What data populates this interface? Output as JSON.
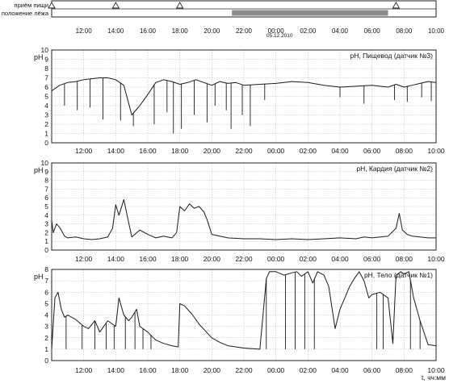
{
  "events": {
    "meal_label": "приём пищи",
    "lying_label": "положение лёжа",
    "meal_times": [
      10.0,
      14.0,
      18.0,
      7.5
    ],
    "lying_period": [
      "21:15",
      "07:00"
    ],
    "x_ticks": [
      "12:00",
      "14:00",
      "16:00",
      "18:00",
      "20:00",
      "22:00",
      "00:00",
      "02:00",
      "04:00",
      "06:00",
      "08:00",
      "10:00"
    ]
  },
  "date_stamp": "05.12.2010",
  "time_axis_label": "t, чч:мм",
  "colors": {
    "trace": "#1a1a1a",
    "grid": "#b5b5b5",
    "lying_bar": "#8c8c8c"
  },
  "chart_data": [
    {
      "type": "line",
      "title": "рН, Пищевод (датчик №3)",
      "ylabel": "pH",
      "ylim": [
        0,
        10
      ],
      "yticks": [
        0,
        1,
        2,
        3,
        4,
        5,
        6,
        7,
        8,
        9,
        10
      ],
      "x_tick_labels": [
        "12:00",
        "14:00",
        "16:00",
        "18:00",
        "20:00",
        "22:00",
        "00:00",
        "02:00",
        "04:00",
        "06:00",
        "08:00",
        "10:00"
      ],
      "x_range_hours": [
        10.0,
        34.0
      ],
      "grid": true,
      "series": [
        {
          "x": [
            10.0,
            10.5,
            11.0,
            11.5,
            12.0,
            12.5,
            13.0,
            13.5,
            14.0,
            14.5,
            15.0,
            15.5,
            16.0,
            16.5,
            17.0,
            17.5,
            18.0,
            18.5,
            19.0,
            19.5,
            20.0,
            20.5,
            21.0,
            21.5,
            22.0,
            23.0,
            24.0,
            25.0,
            26.0,
            27.0,
            28.0,
            29.0,
            30.0,
            31.0,
            31.5,
            32.0,
            32.5,
            33.0,
            33.5,
            34.0
          ],
          "y": [
            5.6,
            6.2,
            6.5,
            6.6,
            6.8,
            6.9,
            7.0,
            7.0,
            6.8,
            6.2,
            3.0,
            4.0,
            5.2,
            6.5,
            6.8,
            6.6,
            6.3,
            6.5,
            6.8,
            6.5,
            6.2,
            6.6,
            6.4,
            6.5,
            6.2,
            6.3,
            6.4,
            6.6,
            6.5,
            6.2,
            6.0,
            6.1,
            6.2,
            6.0,
            6.3,
            6.0,
            6.2,
            6.4,
            6.6,
            6.5
          ],
          "dips": [
            [
              10.8,
              4.0
            ],
            [
              11.6,
              3.5
            ],
            [
              12.4,
              3.8
            ],
            [
              13.2,
              2.5
            ],
            [
              14.3,
              2.4
            ],
            [
              15.1,
              1.8
            ],
            [
              16.4,
              2.0
            ],
            [
              17.2,
              3.3
            ],
            [
              17.6,
              1.0
            ],
            [
              18.1,
              1.5
            ],
            [
              18.9,
              3.0
            ],
            [
              19.7,
              2.2
            ],
            [
              20.2,
              4.0
            ],
            [
              20.9,
              3.5
            ],
            [
              21.2,
              1.5
            ],
            [
              21.9,
              3.0
            ],
            [
              22.4,
              1.8
            ],
            [
              23.3,
              4.6
            ],
            [
              28.0,
              4.9
            ],
            [
              29.5,
              4.2
            ],
            [
              31.4,
              4.6
            ],
            [
              32.2,
              4.4
            ],
            [
              33.1,
              4.9
            ],
            [
              33.7,
              4.5
            ]
          ]
        }
      ]
    },
    {
      "type": "line",
      "title": "рН, Кардия (датчик №2)",
      "ylabel": "pH",
      "ylim": [
        0,
        10
      ],
      "yticks": [
        0,
        1,
        2,
        3,
        4,
        5,
        6,
        7,
        8,
        9,
        10
      ],
      "x_tick_labels": [
        "12:00",
        "14:00",
        "16:00",
        "18:00",
        "20:00",
        "22:00",
        "00:00",
        "02:00",
        "04:00",
        "06:00",
        "08:00",
        "10:00"
      ],
      "x_range_hours": [
        10.0,
        34.0
      ],
      "grid": true,
      "series": [
        {
          "x": [
            10.0,
            10.1,
            10.3,
            10.5,
            10.8,
            11.0,
            11.5,
            12.0,
            12.5,
            13.0,
            13.5,
            13.8,
            14.0,
            14.2,
            14.5,
            14.8,
            15.0,
            15.5,
            16.0,
            16.5,
            17.0,
            17.5,
            17.8,
            18.0,
            18.3,
            18.6,
            18.9,
            19.2,
            19.5,
            19.7,
            20.0,
            20.5,
            21.0,
            22.0,
            23.0,
            24.0,
            25.0,
            26.0,
            27.0,
            28.0,
            29.0,
            29.5,
            30.0,
            31.0,
            31.5,
            31.7,
            31.9,
            32.2,
            32.5,
            33.0,
            33.5,
            34.0
          ],
          "y": [
            3.4,
            2.0,
            3.0,
            2.6,
            1.6,
            1.4,
            1.5,
            1.3,
            1.2,
            1.3,
            1.5,
            2.5,
            5.2,
            4.0,
            5.8,
            3.2,
            1.5,
            2.3,
            1.8,
            1.4,
            1.6,
            1.4,
            2.0,
            5.0,
            4.5,
            5.3,
            4.8,
            5.0,
            4.4,
            3.5,
            1.8,
            1.6,
            1.4,
            1.3,
            1.3,
            1.2,
            1.3,
            1.2,
            1.3,
            1.4,
            1.3,
            1.5,
            1.4,
            1.6,
            2.5,
            4.2,
            2.3,
            1.8,
            1.6,
            1.5,
            1.4,
            1.4
          ],
          "dips": []
        }
      ]
    },
    {
      "type": "line",
      "title": "рН, Тело (датчик №1)",
      "ylabel": "pH",
      "ylim": [
        0,
        8
      ],
      "yticks": [
        0,
        1,
        2,
        3,
        4,
        5,
        6,
        7,
        8
      ],
      "x_tick_labels": [
        "12:00",
        "14:00",
        "16:00",
        "18:00",
        "20:00",
        "22:00",
        "00:00",
        "02:00",
        "04:00",
        "06:00",
        "08:00",
        "10:00"
      ],
      "x_range_hours": [
        10.0,
        34.0
      ],
      "grid": true,
      "series": [
        {
          "x": [
            10.0,
            10.2,
            10.4,
            10.6,
            10.8,
            11.0,
            11.5,
            12.0,
            12.3,
            12.7,
            13.0,
            13.5,
            14.0,
            14.2,
            14.5,
            14.8,
            15.0,
            15.3,
            15.5,
            16.0,
            16.5,
            17.0,
            17.5,
            17.9,
            18.0,
            18.3,
            18.8,
            19.2,
            19.6,
            20.0,
            20.5,
            21.0,
            22.0,
            23.0,
            23.4,
            23.6,
            24.0,
            24.5,
            25.0,
            25.3,
            25.6,
            26.0,
            26.3,
            26.6,
            27.0,
            27.3,
            27.7,
            28.0,
            28.3,
            28.6,
            28.9,
            29.2,
            29.5,
            29.8,
            30.0,
            30.5,
            31.0,
            31.3,
            31.5,
            31.8,
            32.0,
            32.3,
            32.6,
            33.0,
            33.5,
            34.0
          ],
          "y": [
            1.0,
            5.5,
            6.0,
            4.5,
            3.8,
            4.0,
            3.6,
            3.0,
            2.8,
            3.5,
            2.5,
            3.5,
            3.0,
            5.5,
            4.0,
            3.5,
            3.8,
            4.5,
            3.0,
            2.5,
            1.8,
            1.5,
            1.3,
            1.2,
            5.0,
            4.8,
            4.0,
            3.2,
            2.6,
            2.0,
            1.6,
            1.3,
            1.1,
            1.0,
            7.2,
            7.8,
            7.8,
            7.5,
            7.7,
            7.8,
            7.4,
            7.8,
            6.8,
            7.8,
            7.5,
            6.5,
            2.8,
            4.5,
            5.5,
            6.5,
            7.2,
            7.8,
            7.0,
            5.5,
            5.8,
            6.0,
            5.5,
            1.5,
            7.5,
            7.8,
            7.6,
            7.8,
            5.5,
            3.5,
            1.4,
            1.3
          ],
          "dips": [
            [
              10.9,
              1.0
            ],
            [
              11.9,
              1.0
            ],
            [
              12.7,
              1.0
            ],
            [
              13.4,
              1.0
            ],
            [
              13.9,
              1.0
            ],
            [
              14.6,
              1.0
            ],
            [
              15.2,
              1.0
            ],
            [
              15.7,
              1.0
            ],
            [
              16.2,
              1.0
            ],
            [
              23.4,
              1.0
            ],
            [
              24.6,
              1.0
            ],
            [
              25.2,
              1.0
            ],
            [
              25.8,
              1.0
            ],
            [
              26.4,
              1.0
            ],
            [
              30.3,
              1.0
            ],
            [
              30.7,
              1.0
            ],
            [
              32.4,
              1.0
            ],
            [
              33.0,
              1.0
            ]
          ]
        }
      ]
    }
  ]
}
